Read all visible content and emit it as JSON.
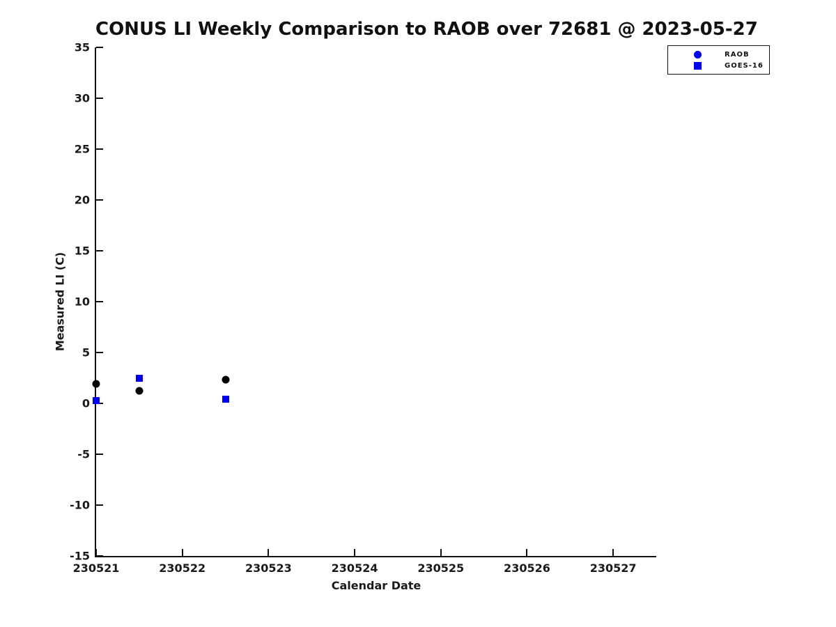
{
  "page": {
    "background": "#ffffff",
    "text_color": "#111111"
  },
  "chart_data": {
    "type": "scatter",
    "title": "CONUS LI Weekly Comparison to RAOB over 72681 @ 2023-05-27",
    "xlabel": "Calendar Date",
    "ylabel": "Measured LI (C)",
    "xlim": [
      230521,
      230527.5
    ],
    "ylim": [
      -15,
      35
    ],
    "xticks": [
      230521,
      230522,
      230523,
      230524,
      230525,
      230526,
      230527
    ],
    "yticks": [
      -15,
      -10,
      -5,
      0,
      5,
      10,
      15,
      20,
      25,
      30,
      35
    ],
    "grid": false,
    "axis_color": "#111111",
    "legend": {
      "position": "top-right",
      "entries": [
        {
          "label": "RAOB",
          "marker": "circle",
          "color": "#0000EE"
        },
        {
          "label": "GOES-16",
          "marker": "square",
          "color": "#0000EE"
        }
      ]
    },
    "series": [
      {
        "name": "RAOB",
        "marker": "circle",
        "color": "#000000",
        "points": [
          {
            "x": 230521.0,
            "y": 1.9
          },
          {
            "x": 230521.5,
            "y": 1.2
          },
          {
            "x": 230522.5,
            "y": 2.3
          }
        ]
      },
      {
        "name": "GOES-16",
        "marker": "square",
        "color": "#0000EE",
        "points": [
          {
            "x": 230521.0,
            "y": 0.3
          },
          {
            "x": 230521.5,
            "y": 2.5
          },
          {
            "x": 230522.5,
            "y": 0.4
          }
        ]
      }
    ]
  }
}
